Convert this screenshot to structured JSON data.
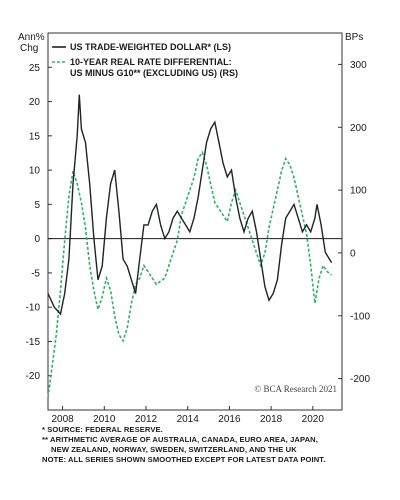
{
  "chart_data": {
    "type": "line",
    "left_axis_label_line1": "Ann%",
    "left_axis_label_line2": "Chg",
    "right_axis_label": "BPs",
    "ylim_left": [
      -25,
      30
    ],
    "ylim_right": [
      -250,
      350
    ],
    "left_ticks": [
      25,
      20,
      15,
      10,
      5,
      0,
      -5,
      -10,
      -15,
      -20
    ],
    "right_ticks": [
      300,
      200,
      100,
      0,
      -100,
      -200
    ],
    "xlim": [
      2007.3,
      2021.4
    ],
    "x_ticks": [
      2008,
      2010,
      2012,
      2014,
      2016,
      2018,
      2020
    ],
    "x_tick_labels": [
      "2008",
      "2010",
      "2012",
      "2014",
      "2016",
      "2018",
      "2020"
    ],
    "zero_line": true,
    "legend_placement": "top-left",
    "series": [
      {
        "name": "US TRADE-WEIGHTED DOLLAR* (LS)",
        "axis": "left",
        "color": "#1e2328",
        "style": "solid",
        "x": [
          2007.3,
          2007.6,
          2007.9,
          2008.1,
          2008.3,
          2008.5,
          2008.7,
          2008.8,
          2008.9,
          2009.1,
          2009.3,
          2009.5,
          2009.7,
          2009.9,
          2010.1,
          2010.3,
          2010.5,
          2010.7,
          2010.9,
          2011.1,
          2011.3,
          2011.5,
          2011.7,
          2011.9,
          2012.1,
          2012.3,
          2012.5,
          2012.7,
          2012.9,
          2013.1,
          2013.3,
          2013.5,
          2013.7,
          2013.9,
          2014.1,
          2014.3,
          2014.5,
          2014.7,
          2014.9,
          2015.1,
          2015.3,
          2015.5,
          2015.7,
          2015.9,
          2016.1,
          2016.3,
          2016.5,
          2016.7,
          2016.9,
          2017.1,
          2017.3,
          2017.5,
          2017.7,
          2017.9,
          2018.1,
          2018.3,
          2018.5,
          2018.7,
          2018.9,
          2019.1,
          2019.3,
          2019.5,
          2019.7,
          2019.9,
          2020.1,
          2020.2,
          2020.4,
          2020.6,
          2020.8,
          2020.9
        ],
        "values": [
          -8,
          -10,
          -11,
          -8,
          -3,
          8,
          15,
          21,
          16,
          14,
          8,
          0,
          -6,
          -4,
          3,
          8,
          10,
          4,
          -3,
          -4,
          -6,
          -8,
          -3,
          2,
          2,
          4,
          5,
          2,
          0,
          1,
          3,
          4,
          3,
          2,
          1,
          3,
          6,
          10,
          14,
          16,
          17,
          14,
          11,
          9,
          10,
          6,
          3,
          1,
          3,
          4,
          1,
          -3,
          -7,
          -9,
          -8,
          -6,
          -1,
          3,
          4,
          5,
          3,
          1,
          2,
          1,
          3,
          5,
          2,
          -2,
          -3,
          -3.5
        ]
      },
      {
        "name_line1": "10-YEAR REAL RATE DIFFERENTIAL:",
        "name_line2": "US MINUS G10** (EXCLUDING US) (RS)",
        "axis": "right",
        "color": "#2fb06f",
        "style": "dashed",
        "x": [
          2007.3,
          2007.5,
          2007.7,
          2007.9,
          2008.1,
          2008.3,
          2008.5,
          2008.7,
          2008.9,
          2009.1,
          2009.3,
          2009.5,
          2009.7,
          2009.9,
          2010.1,
          2010.3,
          2010.5,
          2010.7,
          2010.9,
          2011.1,
          2011.3,
          2011.5,
          2011.7,
          2011.9,
          2012.1,
          2012.3,
          2012.5,
          2012.7,
          2012.9,
          2013.1,
          2013.3,
          2013.5,
          2013.7,
          2013.9,
          2014.1,
          2014.3,
          2014.5,
          2014.7,
          2014.9,
          2015.1,
          2015.3,
          2015.5,
          2015.7,
          2015.9,
          2016.1,
          2016.3,
          2016.5,
          2016.7,
          2016.9,
          2017.1,
          2017.3,
          2017.5,
          2017.7,
          2017.9,
          2018.1,
          2018.3,
          2018.5,
          2018.7,
          2018.9,
          2019.1,
          2019.3,
          2019.5,
          2019.7,
          2019.9,
          2020.1,
          2020.3,
          2020.5,
          2020.7,
          2020.9
        ],
        "values": [
          -230,
          -180,
          -130,
          -60,
          20,
          90,
          130,
          110,
          80,
          40,
          -20,
          -60,
          -90,
          -70,
          -40,
          -60,
          -100,
          -130,
          -140,
          -120,
          -80,
          -50,
          -40,
          -20,
          -30,
          -40,
          -50,
          -45,
          -40,
          -20,
          0,
          20,
          60,
          80,
          100,
          120,
          150,
          160,
          140,
          110,
          80,
          70,
          60,
          50,
          80,
          100,
          80,
          60,
          40,
          20,
          0,
          -20,
          0,
          40,
          70,
          100,
          130,
          150,
          140,
          120,
          90,
          60,
          30,
          -20,
          -80,
          -40,
          -20,
          -30,
          -35
        ]
      }
    ],
    "credit": "© BCA Research 2021"
  },
  "notes": {
    "source": "* SOURCE: FEDERAL RESERVE.",
    "footnote_line1": "** ARITHMETIC AVERAGE OF AUSTRALIA, CANADA, EURO AREA, JAPAN,",
    "footnote_line2": "NEW ZEALAND, NORWAY, SWEDEN, SWITZERLAND, AND THE UK",
    "note": "NOTE: ALL SERIES SHOWN SMOOTHED EXCEPT FOR LATEST DATA POINT."
  }
}
